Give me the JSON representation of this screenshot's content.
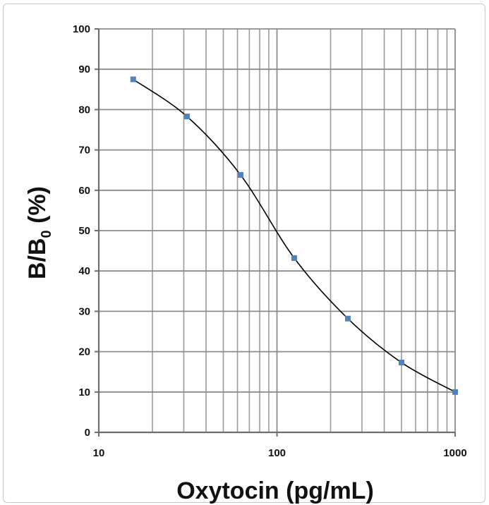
{
  "chart_data": {
    "type": "line",
    "x_scale": "log",
    "xlim": [
      10,
      1000
    ],
    "ylim": [
      0,
      100
    ],
    "x_ticks": [
      10,
      100,
      1000
    ],
    "x_tick_labels": [
      "10",
      "100",
      "1000"
    ],
    "y_ticks": [
      0,
      10,
      20,
      30,
      40,
      50,
      60,
      70,
      80,
      90,
      100
    ],
    "y_tick_labels": [
      "0",
      "10",
      "20",
      "30",
      "40",
      "50",
      "60",
      "70",
      "80",
      "90",
      "100"
    ],
    "xlabel": "Oxytocin (pg/mL)",
    "ylabel_main": "B/B",
    "ylabel_sub": "0",
    "ylabel_suffix": " (%)",
    "grid": true,
    "series": [
      {
        "x": [
          15.6,
          31.25,
          62.5,
          125,
          250,
          500,
          1000
        ],
        "y": [
          87.5,
          78.3,
          63.8,
          43.2,
          28.2,
          17.3,
          10.0
        ],
        "marker_color": "#4f81bd",
        "line_color": "#000000"
      }
    ]
  }
}
